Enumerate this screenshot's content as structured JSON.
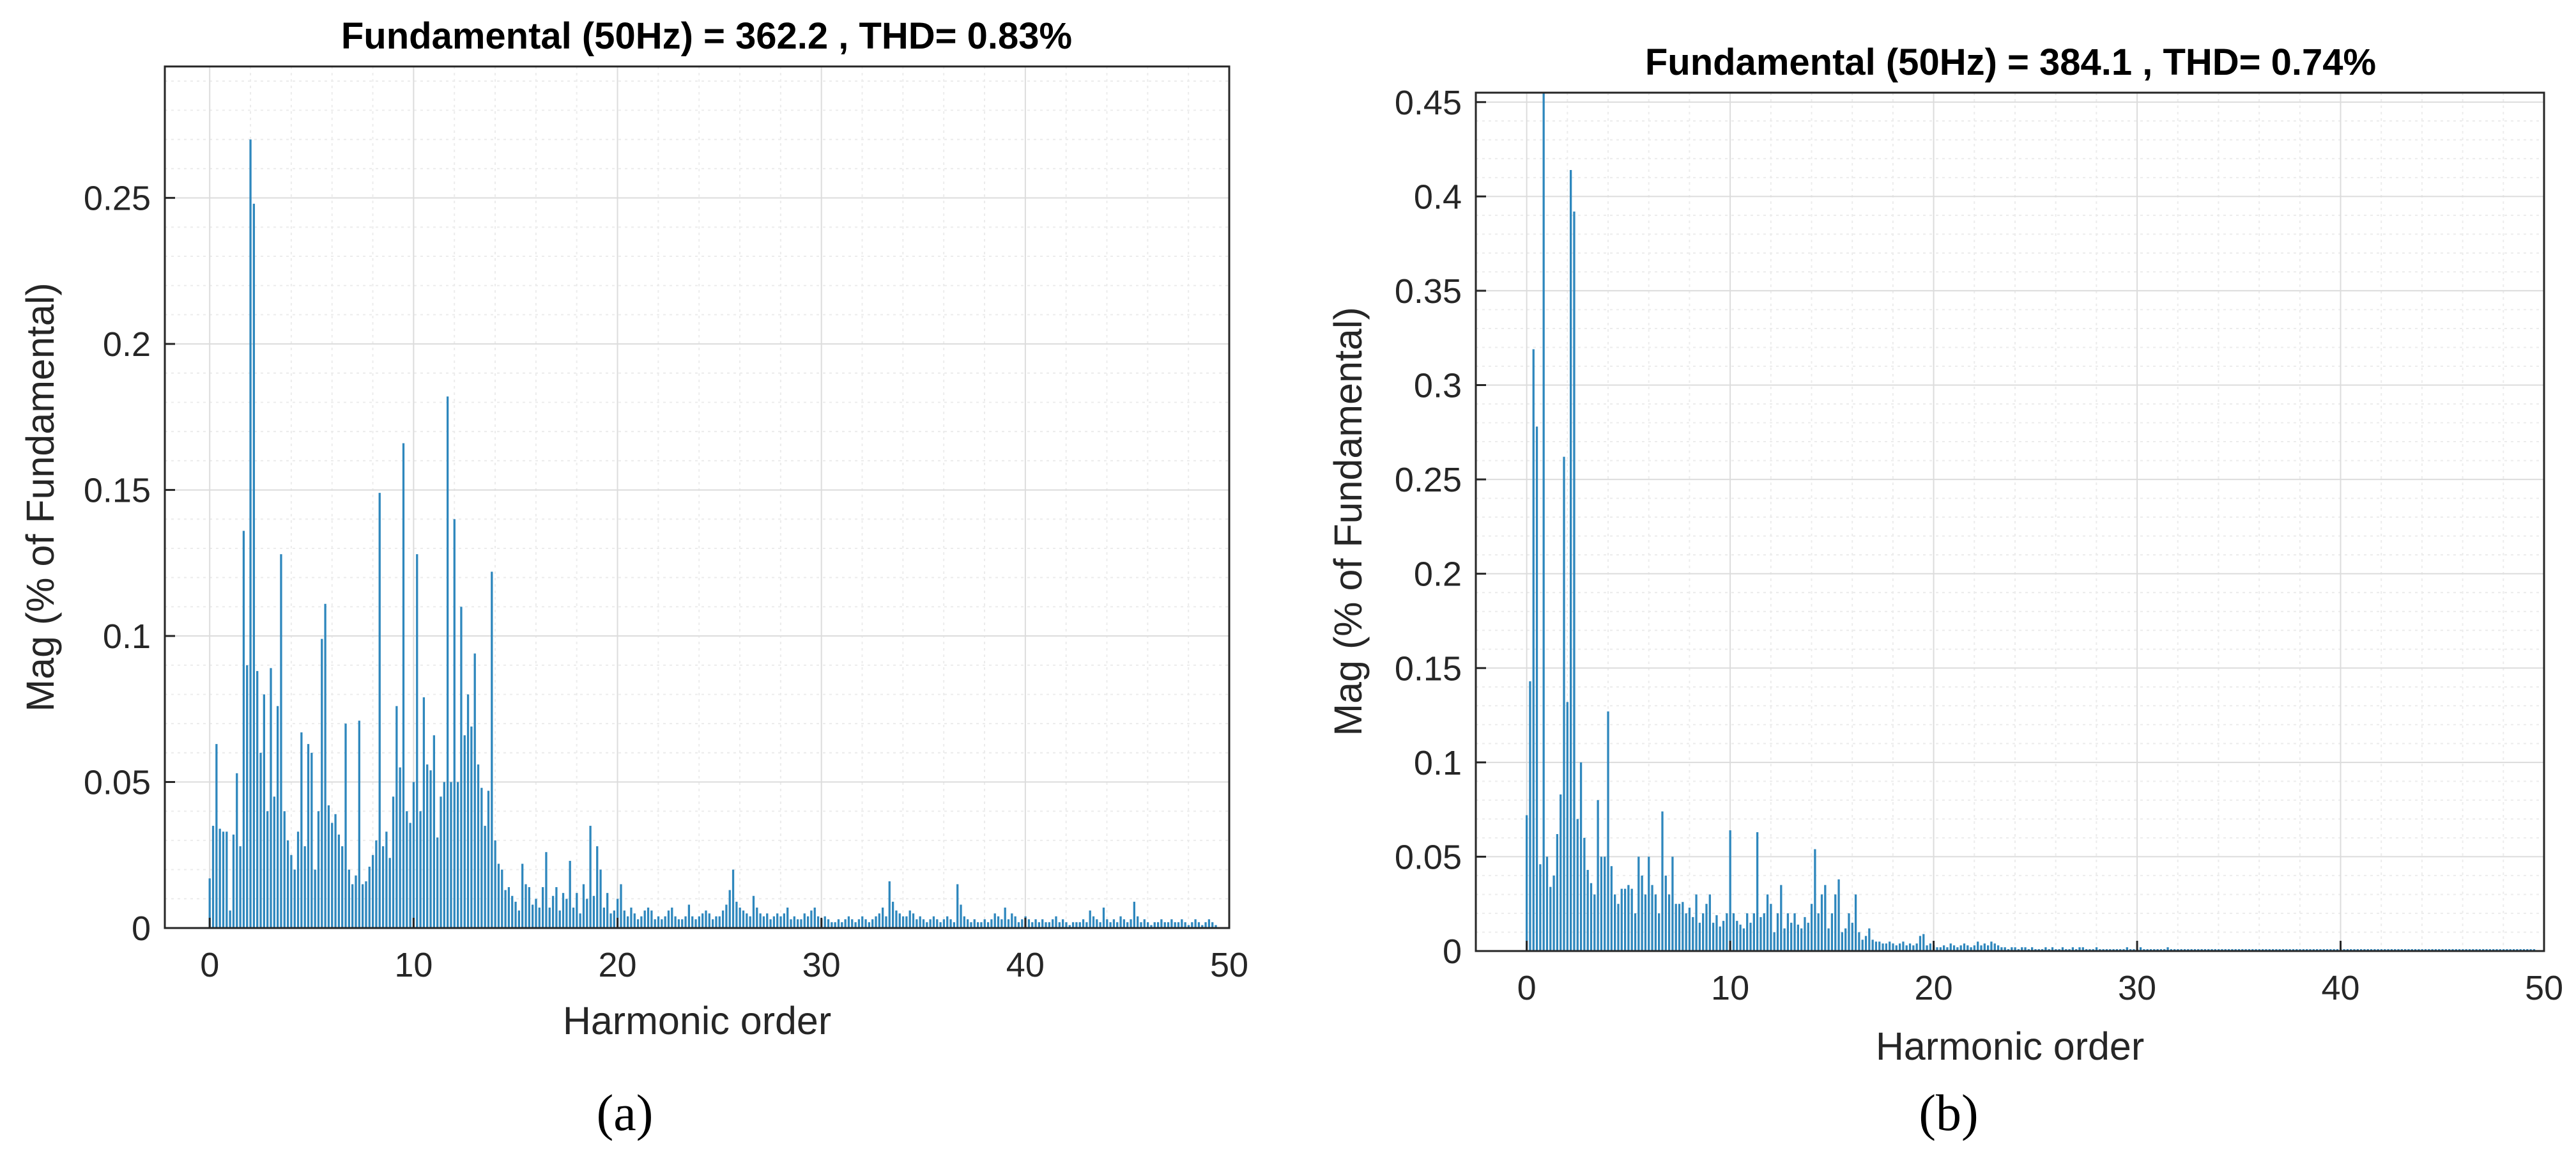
{
  "colors": {
    "bar": "#2e87bd",
    "grid": "#dcdcdc",
    "minor_grid": "#ececec",
    "axis": "#262626"
  },
  "chart_data": [
    {
      "type": "bar",
      "caption": "(a)",
      "title": "Fundamental (50Hz) = 362.2 , THD= 0.83%",
      "xlabel": "Harmonic order",
      "ylabel": "Mag (% of Fundamental)",
      "xlim": [
        -2.2,
        50
      ],
      "ylim": [
        0,
        0.295
      ],
      "xticks": [
        0,
        10,
        20,
        30,
        40,
        50
      ],
      "yticks": [
        0,
        0.05,
        0.1,
        0.15,
        0.2,
        0.25
      ],
      "ytick_labels": [
        "0",
        "0.05",
        "0.1",
        "0.15",
        "0.2",
        "0.25"
      ],
      "grid": true,
      "x_step": 0.1667,
      "values": [
        0.017,
        0.035,
        0.063,
        0.034,
        0.033,
        0.033,
        0.006,
        0.032,
        0.053,
        0.028,
        0.136,
        0.09,
        0.27,
        0.248,
        0.088,
        0.06,
        0.08,
        0.04,
        0.089,
        0.045,
        0.076,
        0.128,
        0.04,
        0.03,
        0.025,
        0.02,
        0.033,
        0.067,
        0.028,
        0.063,
        0.06,
        0.02,
        0.04,
        0.099,
        0.111,
        0.042,
        0.036,
        0.039,
        0.032,
        0.028,
        0.07,
        0.02,
        0.015,
        0.018,
        0.071,
        0.015,
        0.016,
        0.021,
        0.025,
        0.03,
        0.149,
        0.028,
        0.033,
        0.024,
        0.045,
        0.076,
        0.055,
        0.166,
        0.04,
        0.036,
        0.05,
        0.128,
        0.04,
        0.079,
        0.056,
        0.054,
        0.066,
        0.031,
        0.045,
        0.05,
        0.182,
        0.05,
        0.14,
        0.05,
        0.11,
        0.066,
        0.08,
        0.069,
        0.094,
        0.056,
        0.048,
        0.035,
        0.047,
        0.122,
        0.03,
        0.022,
        0.02,
        0.013,
        0.014,
        0.011,
        0.009,
        0.006,
        0.022,
        0.015,
        0.014,
        0.008,
        0.01,
        0.007,
        0.014,
        0.026,
        0.007,
        0.011,
        0.014,
        0.006,
        0.012,
        0.01,
        0.023,
        0.007,
        0.012,
        0.005,
        0.015,
        0.01,
        0.035,
        0.011,
        0.028,
        0.02,
        0.007,
        0.012,
        0.005,
        0.006,
        0.01,
        0.015,
        0.006,
        0.004,
        0.007,
        0.005,
        0.003,
        0.004,
        0.006,
        0.007,
        0.006,
        0.003,
        0.004,
        0.003,
        0.004,
        0.006,
        0.007,
        0.004,
        0.003,
        0.003,
        0.004,
        0.008,
        0.004,
        0.003,
        0.004,
        0.005,
        0.006,
        0.005,
        0.003,
        0.004,
        0.004,
        0.006,
        0.008,
        0.013,
        0.02,
        0.009,
        0.007,
        0.006,
        0.005,
        0.004,
        0.011,
        0.007,
        0.005,
        0.004,
        0.005,
        0.003,
        0.004,
        0.005,
        0.004,
        0.005,
        0.007,
        0.003,
        0.004,
        0.003,
        0.003,
        0.005,
        0.004,
        0.006,
        0.007,
        0.004,
        0.003,
        0.004,
        0.003,
        0.002,
        0.002,
        0.003,
        0.002,
        0.003,
        0.004,
        0.003,
        0.002,
        0.003,
        0.004,
        0.003,
        0.002,
        0.003,
        0.004,
        0.005,
        0.007,
        0.004,
        0.016,
        0.009,
        0.006,
        0.005,
        0.004,
        0.004,
        0.006,
        0.005,
        0.003,
        0.004,
        0.003,
        0.002,
        0.003,
        0.004,
        0.003,
        0.002,
        0.003,
        0.004,
        0.003,
        0.002,
        0.015,
        0.008,
        0.004,
        0.003,
        0.002,
        0.003,
        0.002,
        0.002,
        0.003,
        0.002,
        0.003,
        0.005,
        0.004,
        0.003,
        0.007,
        0.003,
        0.005,
        0.004,
        0.002,
        0.003,
        0.004,
        0.003,
        0.002,
        0.003,
        0.002,
        0.003,
        0.002,
        0.002,
        0.003,
        0.004,
        0.002,
        0.003,
        0.002,
        0.001,
        0.002,
        0.002,
        0.002,
        0.003,
        0.002,
        0.006,
        0.004,
        0.003,
        0.002,
        0.007,
        0.003,
        0.002,
        0.003,
        0.002,
        0.004,
        0.003,
        0.002,
        0.003,
        0.009,
        0.004,
        0.002,
        0.003,
        0.002,
        0.001,
        0.002,
        0.002,
        0.003,
        0.002,
        0.002,
        0.003,
        0.002,
        0.002,
        0.003,
        0.002,
        0.001,
        0.002,
        0.003,
        0.002,
        0.001,
        0.002,
        0.003,
        0.002,
        0.001
      ]
    },
    {
      "type": "bar",
      "caption": "(b)",
      "title": "Fundamental (50Hz) = 384.1 , THD= 0.74%",
      "xlabel": "Harmonic order",
      "ylabel": "Mag (% of Fundamental)",
      "xlim": [
        -2.5,
        50
      ],
      "ylim": [
        0,
        0.455
      ],
      "xticks": [
        0,
        10,
        20,
        30,
        40,
        50
      ],
      "yticks": [
        0,
        0.05,
        0.1,
        0.15,
        0.2,
        0.25,
        0.3,
        0.35,
        0.4,
        0.45
      ],
      "ytick_labels": [
        "0",
        "0.05",
        "0.1",
        "0.15",
        "0.2",
        "0.25",
        "0.3",
        "0.35",
        "0.4",
        "0.45"
      ],
      "grid": true,
      "x_step": 0.1667,
      "values": [
        0.072,
        0.143,
        0.319,
        0.278,
        0.046,
        0.455,
        0.05,
        0.034,
        0.04,
        0.062,
        0.083,
        0.262,
        0.132,
        0.414,
        0.392,
        0.07,
        0.1,
        0.06,
        0.043,
        0.036,
        0.03,
        0.08,
        0.05,
        0.05,
        0.127,
        0.045,
        0.03,
        0.025,
        0.033,
        0.033,
        0.035,
        0.033,
        0.02,
        0.05,
        0.04,
        0.03,
        0.05,
        0.035,
        0.03,
        0.02,
        0.074,
        0.04,
        0.03,
        0.05,
        0.025,
        0.025,
        0.026,
        0.02,
        0.023,
        0.018,
        0.03,
        0.015,
        0.02,
        0.025,
        0.03,
        0.015,
        0.019,
        0.013,
        0.016,
        0.02,
        0.064,
        0.02,
        0.016,
        0.014,
        0.012,
        0.02,
        0.015,
        0.02,
        0.063,
        0.018,
        0.02,
        0.03,
        0.025,
        0.01,
        0.02,
        0.035,
        0.012,
        0.02,
        0.015,
        0.02,
        0.014,
        0.012,
        0.018,
        0.015,
        0.025,
        0.054,
        0.02,
        0.03,
        0.035,
        0.012,
        0.02,
        0.03,
        0.038,
        0.01,
        0.012,
        0.02,
        0.015,
        0.03,
        0.01,
        0.006,
        0.008,
        0.012,
        0.006,
        0.005,
        0.005,
        0.004,
        0.004,
        0.005,
        0.004,
        0.003,
        0.004,
        0.005,
        0.003,
        0.004,
        0.003,
        0.004,
        0.008,
        0.009,
        0.003,
        0.004,
        0.003,
        0.002,
        0.002,
        0.003,
        0.002,
        0.004,
        0.003,
        0.002,
        0.003,
        0.004,
        0.003,
        0.002,
        0.003,
        0.005,
        0.003,
        0.004,
        0.003,
        0.005,
        0.004,
        0.003,
        0.002,
        0.002,
        0.001,
        0.002,
        0.002,
        0.001,
        0.002,
        0.002,
        0.001,
        0.002,
        0.001,
        0.001,
        0.001,
        0.002,
        0.001,
        0.002,
        0.001,
        0.001,
        0.002,
        0.001,
        0.001,
        0.002,
        0.001,
        0.002,
        0.002,
        0.001,
        0.001,
        0.001,
        0.002,
        0.001,
        0.001,
        0.001,
        0.001,
        0.001,
        0.001,
        0.001,
        0.001,
        0.002,
        0.001,
        0.001,
        0.001,
        0.002,
        0.001,
        0.001,
        0.001,
        0.001,
        0.001,
        0.001,
        0.001,
        0.002,
        0.001,
        0.001,
        0.001,
        0.001,
        0.001,
        0.001,
        0.001,
        0.001,
        0.001,
        0.001,
        0.001,
        0.001,
        0.001,
        0.001,
        0.001,
        0.001,
        0.001,
        0.001,
        0.001,
        0.001,
        0.001,
        0.001,
        0.001,
        0.001,
        0.001,
        0.001,
        0.001,
        0.001,
        0.001,
        0.001,
        0.001,
        0.001,
        0.001,
        0.001,
        0.001,
        0.001,
        0.001,
        0.001,
        0.001,
        0.001,
        0.001,
        0.001,
        0.001,
        0.001,
        0.001,
        0.001,
        0.001,
        0.001,
        0.001,
        0.001,
        0.001,
        0.001,
        0.001,
        0.001,
        0.001,
        0.001,
        0.001,
        0.001,
        0.001,
        0.001,
        0.001,
        0.001,
        0.001,
        0.001,
        0.001,
        0.001,
        0.001,
        0.001,
        0.001,
        0.001,
        0.001,
        0.001,
        0.001,
        0.001,
        0.001,
        0.001,
        0.001,
        0.001,
        0.001,
        0.001,
        0.001,
        0.001,
        0.001,
        0.001,
        0.001,
        0.001,
        0.001,
        0.001,
        0.001,
        0.001,
        0.001,
        0.001,
        0.001,
        0.001,
        0.001,
        0.001,
        0.001,
        0.001,
        0.001,
        0.001,
        0.001,
        0.001,
        0.001,
        0.001,
        0.001,
        0.001,
        0.001,
        0.001
      ]
    }
  ]
}
